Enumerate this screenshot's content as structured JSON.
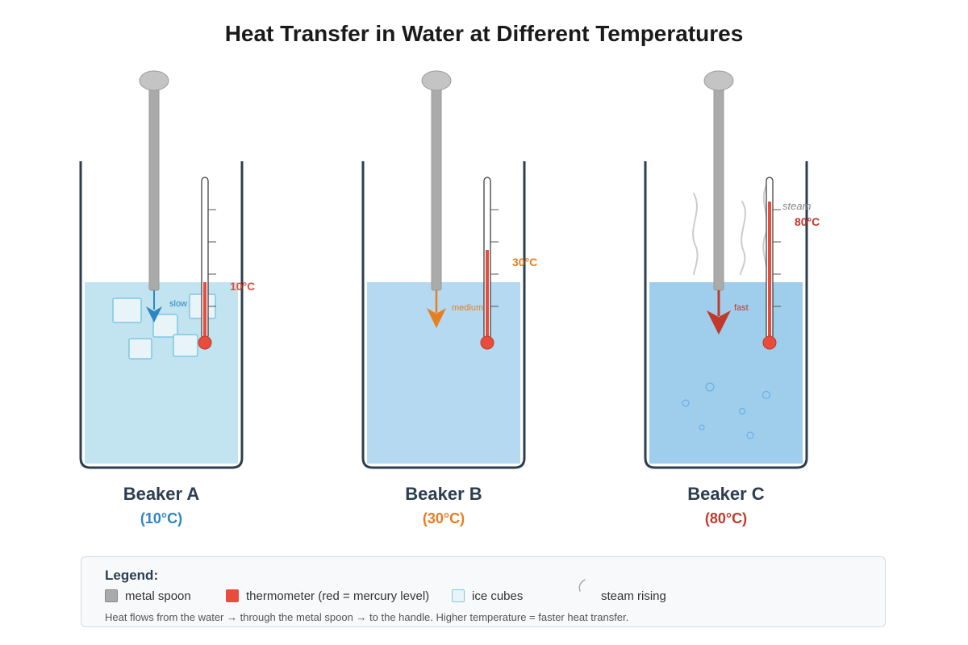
{
  "title": "Heat Transfer in Water at Different Temperatures",
  "beakers": [
    {
      "name": "Beaker A",
      "temp_label": "(10°C)",
      "thermometer_reading": "10°C",
      "arrow_label": "slow",
      "color": "#2e86c1",
      "reading_color": "#e74c3c",
      "water_color": "#c2e3f0",
      "mercury_level": 0.35
    },
    {
      "name": "Beaker B",
      "temp_label": "(30°C)",
      "thermometer_reading": "30°C",
      "arrow_label": "medium",
      "color": "#e67e22",
      "reading_color": "#e67e22",
      "water_color": "#b5d9f0",
      "mercury_level": 0.55
    },
    {
      "name": "Beaker C",
      "temp_label": "(80°C)",
      "thermometer_reading": "80°C",
      "arrow_label": "fast",
      "steam_label": "steam",
      "color": "#c0392b",
      "reading_color": "#c0392b",
      "water_color": "#9fcdec",
      "mercury_level": 0.85
    }
  ],
  "legend": {
    "title": "Legend:",
    "items": [
      {
        "label": "metal spoon",
        "icon": "spoon-swatch"
      },
      {
        "label": "thermometer (red = mercury level)",
        "icon": "thermometer-swatch"
      },
      {
        "label": "ice cubes",
        "icon": "ice-cube-swatch"
      },
      {
        "label": "steam rising",
        "icon": "steam-icon"
      }
    ],
    "note": "Heat flows from the water → through the metal spoon → to the handle. Higher temperature = faster heat transfer."
  },
  "colors": {
    "beaker_outline": "#2c3e50",
    "spoon": "#aaaaaa",
    "mercury": "#e74c3c",
    "ice": "#e8f4f8",
    "ice_border": "#7ec8e3",
    "steam": "#cccccc",
    "bubble": "#5dade2"
  }
}
